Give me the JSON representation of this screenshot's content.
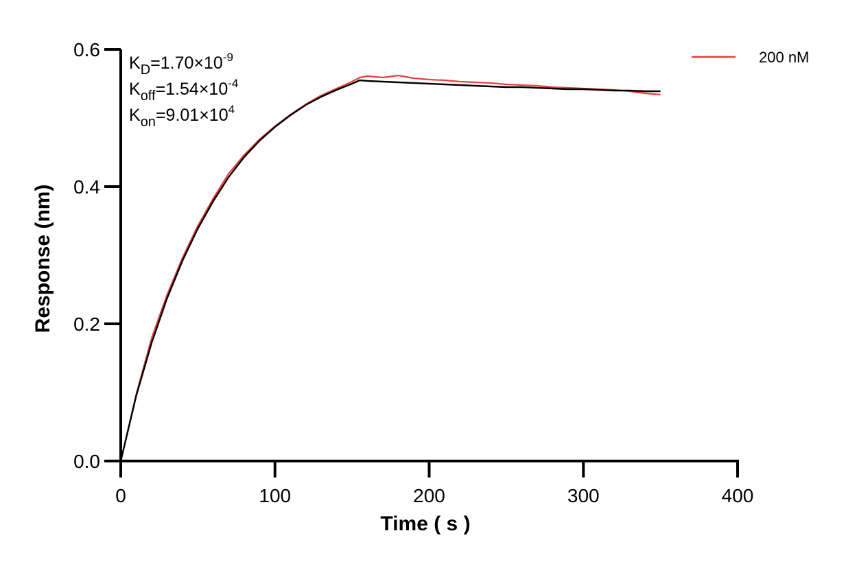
{
  "chart_data": {
    "type": "line",
    "title": "",
    "xlabel": "Time ( s )",
    "ylabel": "Response (nm)",
    "xlim": [
      0,
      400
    ],
    "ylim": [
      0,
      0.6
    ],
    "xticks": [
      "0",
      "100",
      "200",
      "300",
      "400"
    ],
    "yticks": [
      "0.0",
      "0.2",
      "0.4",
      "0.6"
    ],
    "grid": false,
    "legend_position": "top-right",
    "colors": {
      "measured": "#e8413c",
      "fit": "#000000",
      "axis": "#000000"
    },
    "annotations": [
      {
        "base": "K",
        "sub": "D",
        "mid": "=1.70×10",
        "sup": "-9"
      },
      {
        "base": "K",
        "sub": "off",
        "mid": "=1.54×10",
        "sup": "-4"
      },
      {
        "base": "K",
        "sub": "on",
        "mid": "=9.01×10",
        "sup": "4"
      }
    ],
    "series": [
      {
        "name": "200 nM",
        "role": "measured",
        "x": [
          0,
          10,
          20,
          30,
          40,
          50,
          60,
          70,
          80,
          90,
          100,
          110,
          120,
          130,
          140,
          150,
          155,
          160,
          170,
          180,
          190,
          200,
          210,
          220,
          230,
          240,
          250,
          260,
          270,
          280,
          290,
          300,
          310,
          320,
          330,
          340,
          350
        ],
        "y": [
          0.0,
          0.097,
          0.179,
          0.242,
          0.296,
          0.343,
          0.383,
          0.419,
          0.446,
          0.469,
          0.488,
          0.505,
          0.52,
          0.533,
          0.543,
          0.553,
          0.559,
          0.561,
          0.559,
          0.562,
          0.558,
          0.556,
          0.555,
          0.553,
          0.552,
          0.551,
          0.549,
          0.548,
          0.547,
          0.545,
          0.544,
          0.543,
          0.542,
          0.541,
          0.539,
          0.536,
          0.534
        ]
      },
      {
        "role": "fit",
        "x": [
          0,
          10,
          20,
          30,
          40,
          50,
          60,
          70,
          80,
          90,
          100,
          110,
          120,
          130,
          140,
          150,
          155,
          160,
          170,
          180,
          190,
          200,
          210,
          220,
          230,
          240,
          250,
          260,
          270,
          280,
          290,
          300,
          310,
          320,
          330,
          340,
          350
        ],
        "y": [
          0.0,
          0.095,
          0.172,
          0.237,
          0.292,
          0.339,
          0.379,
          0.414,
          0.443,
          0.467,
          0.487,
          0.504,
          0.519,
          0.531,
          0.541,
          0.55,
          0.555,
          0.554,
          0.553,
          0.552,
          0.551,
          0.55,
          0.549,
          0.548,
          0.547,
          0.546,
          0.545,
          0.545,
          0.544,
          0.543,
          0.542,
          0.542,
          0.541,
          0.54,
          0.54,
          0.539,
          0.539
        ]
      }
    ]
  }
}
